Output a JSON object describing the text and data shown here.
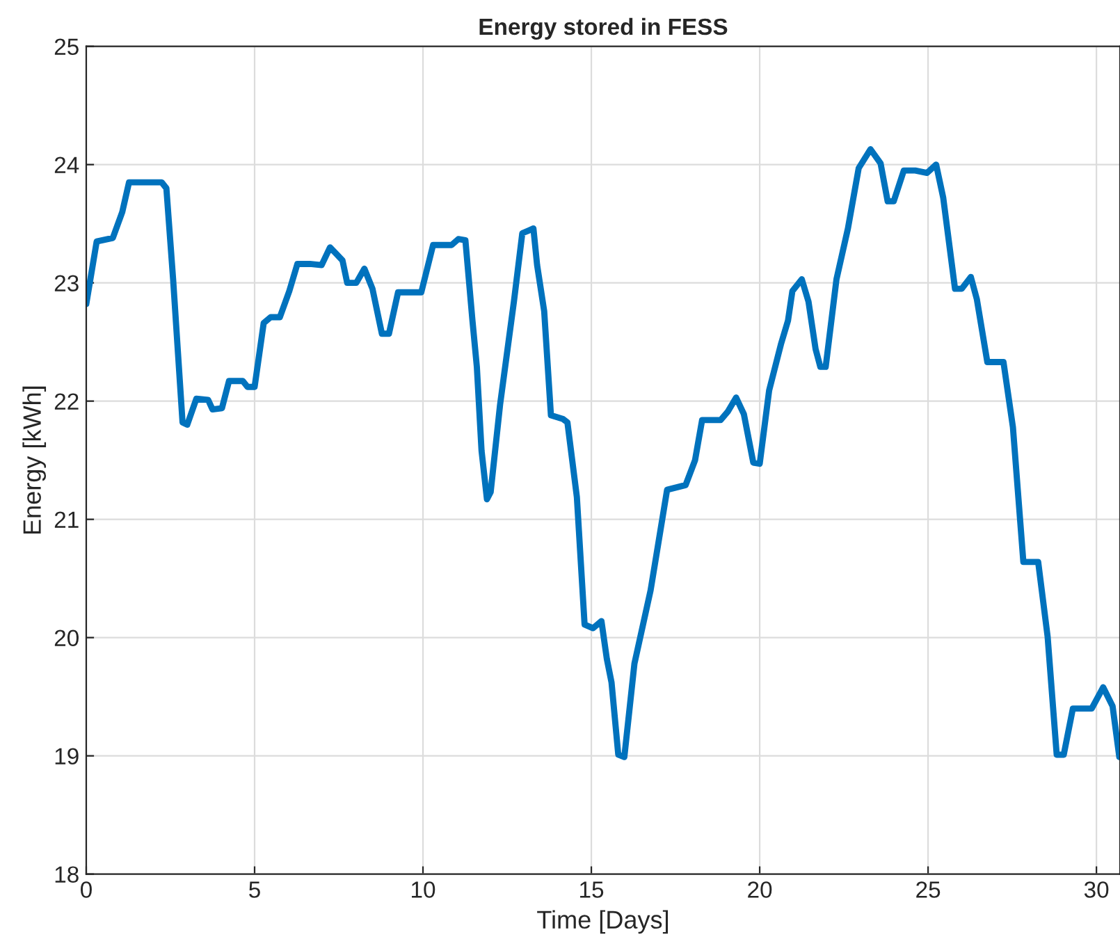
{
  "chart_data": {
    "type": "line",
    "title": "Energy stored in FESS",
    "xlabel": "Time [Days]",
    "ylabel": "Energy [kWh]",
    "xlim": [
      0,
      30.7
    ],
    "xticks": [
      0,
      5,
      10,
      15,
      20,
      25,
      30
    ],
    "ylim": [
      18,
      25
    ],
    "yticks": [
      18,
      19,
      20,
      21,
      22,
      23,
      24,
      25
    ],
    "grid": true,
    "line_style": "solid",
    "marker": "none",
    "series": [
      {
        "color": "#0072bd",
        "x": [
          0,
          0.31,
          0.79,
          1.07,
          1.27,
          2.24,
          2.38,
          2.58,
          2.86,
          3.0,
          3.27,
          3.62,
          3.75,
          4.03,
          4.24,
          4.65,
          4.79,
          5.0,
          5.27,
          5.48,
          5.75,
          6.03,
          6.27,
          6.64,
          6.99,
          7.24,
          7.41,
          7.61,
          7.75,
          8.02,
          8.26,
          8.5,
          8.78,
          8.99,
          9.26,
          9.95,
          10.3,
          10.85,
          11.05,
          11.26,
          11.47,
          11.6,
          11.74,
          11.9,
          12.01,
          12.29,
          12.7,
          12.95,
          13.12,
          13.28,
          13.39,
          13.6,
          13.8,
          14.15,
          14.29,
          14.57,
          14.8,
          15.05,
          15.3,
          15.46,
          15.6,
          15.8,
          15.98,
          16.28,
          16.76,
          17.25,
          17.8,
          18.08,
          18.29,
          18.84,
          19.05,
          19.3,
          19.53,
          19.81,
          20.0,
          20.28,
          20.63,
          20.84,
          20.97,
          21.25,
          21.45,
          21.66,
          21.8,
          21.96,
          22.28,
          22.62,
          22.94,
          23.29,
          23.59,
          23.8,
          23.98,
          24.28,
          24.62,
          24.97,
          25.24,
          25.45,
          25.8,
          26.0,
          26.27,
          26.45,
          26.76,
          27.24,
          27.52,
          27.83,
          28.27,
          28.55,
          28.82,
          29.03,
          29.3,
          29.86,
          30.2,
          30.48,
          30.68
        ],
        "values": [
          22.82,
          23.35,
          23.38,
          23.6,
          23.85,
          23.85,
          23.8,
          23.03,
          21.82,
          21.8,
          22.02,
          22.01,
          21.93,
          21.94,
          22.17,
          22.17,
          22.12,
          22.12,
          22.66,
          22.71,
          22.71,
          22.93,
          23.16,
          23.16,
          23.15,
          23.3,
          23.25,
          23.19,
          23.0,
          23.0,
          23.12,
          22.95,
          22.57,
          22.57,
          22.92,
          22.92,
          23.32,
          23.32,
          23.37,
          23.36,
          22.68,
          22.29,
          21.58,
          21.17,
          21.23,
          21.97,
          22.84,
          23.42,
          23.44,
          23.46,
          23.15,
          22.76,
          21.88,
          21.85,
          21.82,
          21.19,
          20.11,
          20.08,
          20.14,
          19.82,
          19.62,
          19.01,
          18.99,
          19.78,
          20.4,
          21.25,
          21.29,
          21.5,
          21.84,
          21.84,
          21.91,
          22.03,
          21.89,
          21.48,
          21.47,
          22.09,
          22.48,
          22.68,
          22.93,
          23.03,
          22.84,
          22.44,
          22.29,
          22.29,
          23.03,
          23.46,
          23.97,
          24.13,
          24.01,
          23.69,
          23.69,
          23.95,
          23.95,
          23.93,
          24.0,
          23.72,
          22.95,
          22.95,
          23.05,
          22.86,
          22.33,
          22.33,
          21.78,
          20.64,
          20.64,
          20.01,
          19.01,
          19.01,
          19.4,
          19.4,
          19.58,
          19.42,
          18.99
        ]
      }
    ]
  }
}
